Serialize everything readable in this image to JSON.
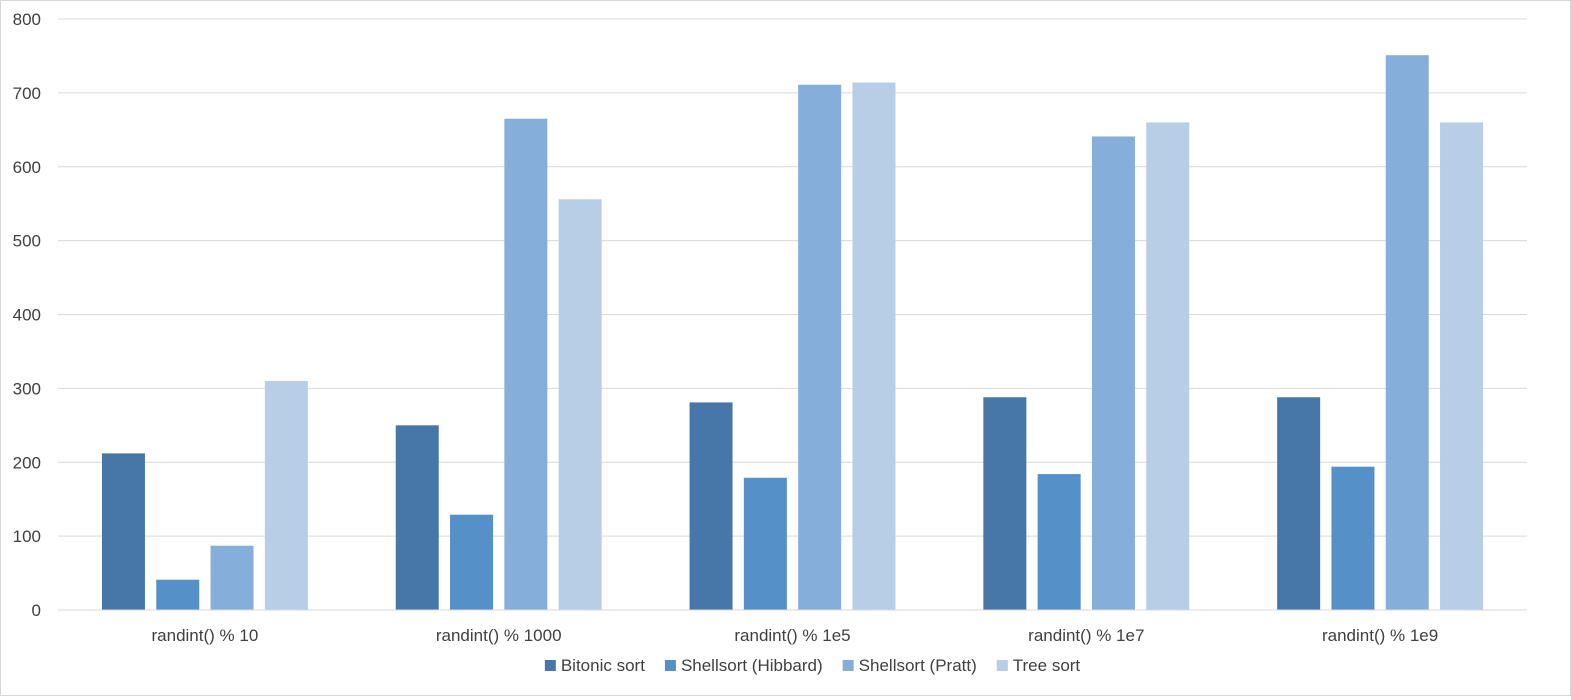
{
  "chart_data": {
    "type": "bar",
    "title": "",
    "xlabel": "",
    "ylabel": "",
    "ylim": [
      0,
      800
    ],
    "yticks": [
      0,
      100,
      200,
      300,
      400,
      500,
      600,
      700,
      800
    ],
    "grid": true,
    "legend_position": "bottom",
    "categories": [
      "randint() % 10",
      "randint() % 1000",
      "randint() % 1e5",
      "randint() % 1e7",
      "randint() % 1e9"
    ],
    "series": [
      {
        "name": "Bitonic sort",
        "color": "#4677a8",
        "values": [
          212,
          250,
          281,
          288,
          288
        ]
      },
      {
        "name": "Shellsort (Hibbard)",
        "color": "#5590c8",
        "values": [
          41,
          129,
          179,
          184,
          194
        ]
      },
      {
        "name": "Shellsort (Pratt)",
        "color": "#86aedb",
        "values": [
          87,
          665,
          711,
          641,
          751
        ]
      },
      {
        "name": "Tree sort",
        "color": "#b8cde6",
        "values": [
          310,
          556,
          714,
          660,
          660
        ]
      }
    ]
  }
}
